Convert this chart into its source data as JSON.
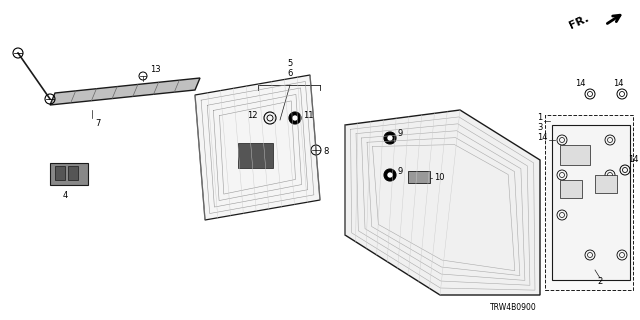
{
  "bg_color": "#ffffff",
  "line_color": "#1a1a1a",
  "part_number": "TRW4B0900",
  "figsize": [
    6.4,
    3.2
  ],
  "dpi": 100
}
